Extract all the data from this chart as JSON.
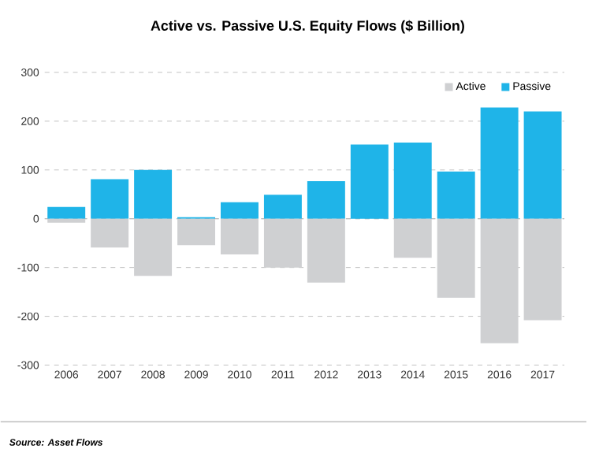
{
  "chart_data": {
    "type": "bar",
    "title": "Active vs. Passive U.S. Equity Flows ($ Billion)",
    "categories": [
      "2006",
      "2007",
      "2008",
      "2009",
      "2010",
      "2011",
      "2012",
      "2013",
      "2014",
      "2015",
      "2016",
      "2017"
    ],
    "series": [
      {
        "name": "Active",
        "color": "#cfd0d2",
        "values": [
          -8,
          -59,
          -117,
          -54,
          -73,
          -100,
          -131,
          0,
          -80,
          -162,
          -255,
          -208
        ]
      },
      {
        "name": "Passive",
        "color": "#1fb4e8",
        "values": [
          24,
          81,
          100,
          3,
          34,
          49,
          77,
          152,
          156,
          97,
          228,
          220
        ]
      }
    ],
    "ylim": [
      -300,
      300
    ],
    "yticks": [
      -300,
      -200,
      -100,
      0,
      100,
      200,
      300
    ],
    "stacked": true,
    "grid": "y",
    "legend": "top right",
    "annotations": [
      "Source: Asset Flows"
    ]
  }
}
